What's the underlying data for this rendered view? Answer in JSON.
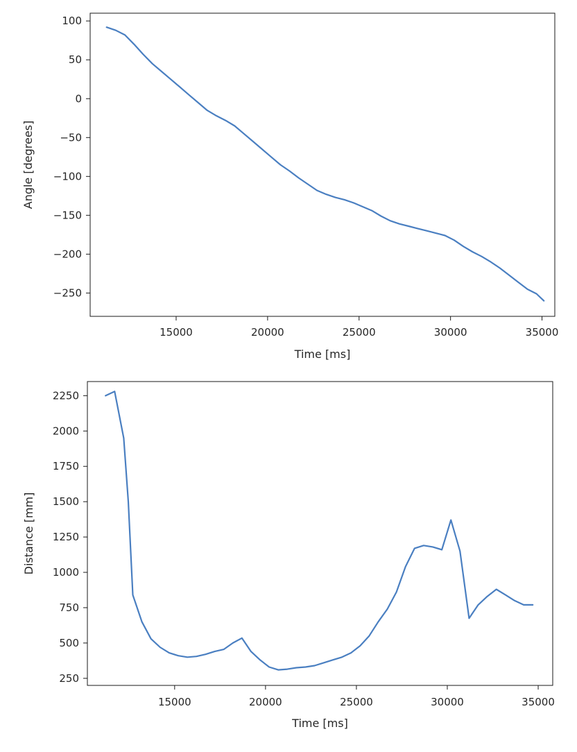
{
  "chart_data": [
    {
      "type": "line",
      "xlabel": "Time [ms]",
      "ylabel": "Angle [degrees]",
      "xlim": [
        10300,
        35700
      ],
      "ylim": [
        -280,
        110
      ],
      "xticks": [
        15000,
        20000,
        25000,
        30000,
        35000
      ],
      "yticks": [
        100,
        50,
        0,
        -50,
        -100,
        -150,
        -200,
        -250
      ],
      "grid": false,
      "line_color": "#4a7fc1",
      "series": [
        {
          "x": [
            11200,
            11700,
            12200,
            12700,
            13200,
            13700,
            14200,
            14700,
            15200,
            15700,
            16200,
            16700,
            17200,
            17700,
            18200,
            18700,
            19200,
            19700,
            20200,
            20700,
            21200,
            21700,
            22200,
            22700,
            23200,
            23700,
            24200,
            24700,
            25200,
            25700,
            26200,
            26700,
            27200,
            27700,
            28200,
            28700,
            29200,
            29700,
            30200,
            30700,
            31200,
            31700,
            32200,
            32700,
            33200,
            33700,
            34200,
            34700,
            35100
          ],
          "y": [
            92,
            88,
            82,
            70,
            57,
            45,
            35,
            25,
            15,
            5,
            -5,
            -15,
            -22,
            -28,
            -35,
            -45,
            -55,
            -65,
            -75,
            -85,
            -93,
            -102,
            -110,
            -118,
            -123,
            -127,
            -130,
            -134,
            -139,
            -144,
            -151,
            -157,
            -161,
            -164,
            -167,
            -170,
            -173,
            -176,
            -182,
            -190,
            -197,
            -203,
            -210,
            -218,
            -227,
            -236,
            -245,
            -251,
            -260
          ]
        }
      ]
    },
    {
      "type": "line",
      "xlabel": "Time [ms]",
      "ylabel": "Distance [mm]",
      "xlim": [
        10200,
        35800
      ],
      "ylim": [
        200,
        2350
      ],
      "xticks": [
        15000,
        20000,
        25000,
        30000,
        35000
      ],
      "yticks": [
        2250,
        2000,
        1750,
        1500,
        1250,
        1000,
        750,
        500,
        250
      ],
      "grid": false,
      "line_color": "#4a7fc1",
      "series": [
        {
          "x": [
            11200,
            11700,
            12200,
            12450,
            12700,
            13200,
            13700,
            14200,
            14700,
            15200,
            15700,
            16200,
            16700,
            17200,
            17700,
            18200,
            18700,
            19200,
            19700,
            20200,
            20700,
            21200,
            21700,
            22200,
            22700,
            23200,
            23700,
            24200,
            24700,
            25200,
            25700,
            26200,
            26700,
            27200,
            27700,
            28200,
            28700,
            29200,
            29700,
            30200,
            30700,
            31200,
            31700,
            32200,
            32700,
            33200,
            33700,
            34200,
            34700
          ],
          "y": [
            2250,
            2280,
            1950,
            1500,
            840,
            650,
            530,
            470,
            430,
            410,
            400,
            405,
            420,
            440,
            455,
            500,
            535,
            440,
            380,
            330,
            310,
            315,
            325,
            330,
            340,
            360,
            380,
            400,
            430,
            480,
            550,
            650,
            740,
            860,
            1040,
            1170,
            1190,
            1180,
            1160,
            1370,
            1150,
            675,
            770,
            830,
            880,
            840,
            800,
            770,
            770
          ]
        }
      ]
    }
  ]
}
